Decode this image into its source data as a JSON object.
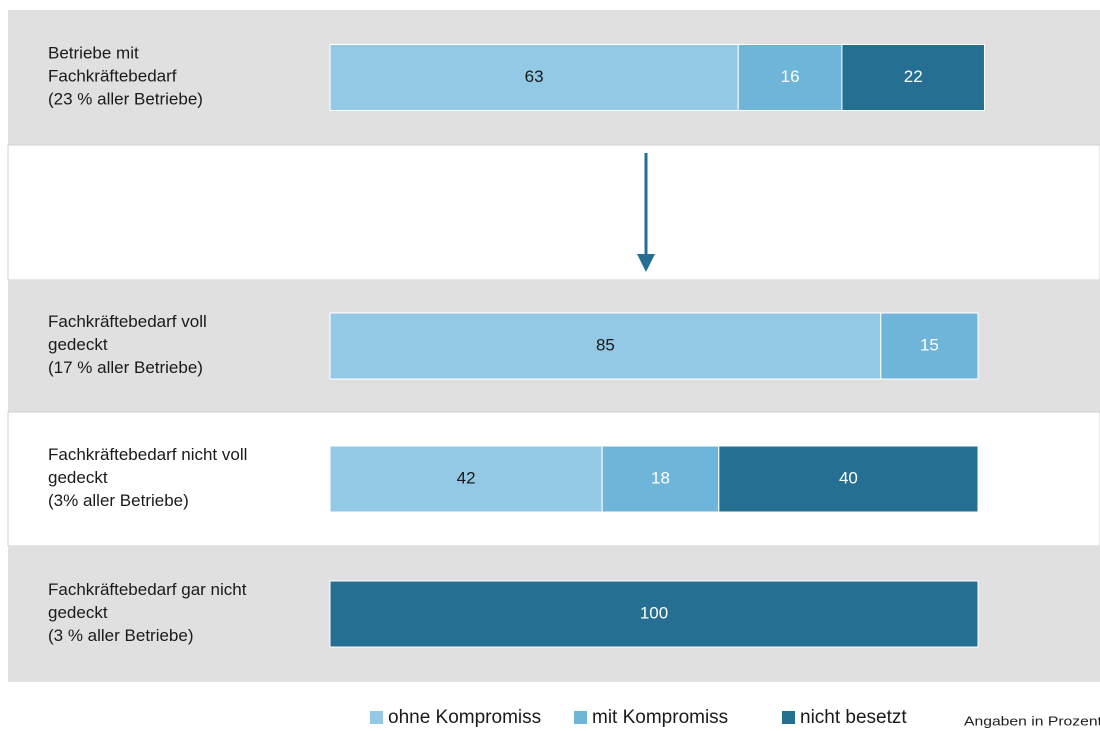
{
  "chart_data": {
    "type": "stacked-bar-horizontal",
    "categories": [
      [
        "Betriebe mit",
        "Fachkräftebedarf",
        "(23 % aller Betriebe)"
      ],
      [
        "Fachkräftebedarf voll",
        "gedeckt",
        "(17 % aller Betriebe)"
      ],
      [
        "Fachkräftebedarf nicht voll",
        "gedeckt",
        "(3% aller Betriebe)"
      ],
      [
        "Fachkräftebedarf gar nicht",
        "gedeckt",
        "(3 % aller Betriebe)"
      ]
    ],
    "series": [
      {
        "name": "ohne Kompromiss",
        "color": "#93c9e4",
        "label_color": "#1a1a1a",
        "values": [
          63,
          85,
          42,
          null
        ]
      },
      {
        "name": "mit Kompromiss",
        "color": "#6fb5da",
        "label_color": "#ffffff",
        "values": [
          16,
          15,
          18,
          null
        ]
      },
      {
        "name": "nicht besetzt",
        "color": "#256f93",
        "label_color": "#ffffff",
        "values": [
          22,
          null,
          40,
          100
        ]
      }
    ],
    "xlim": [
      0,
      100
    ],
    "note": "Angaben in Prozent"
  }
}
